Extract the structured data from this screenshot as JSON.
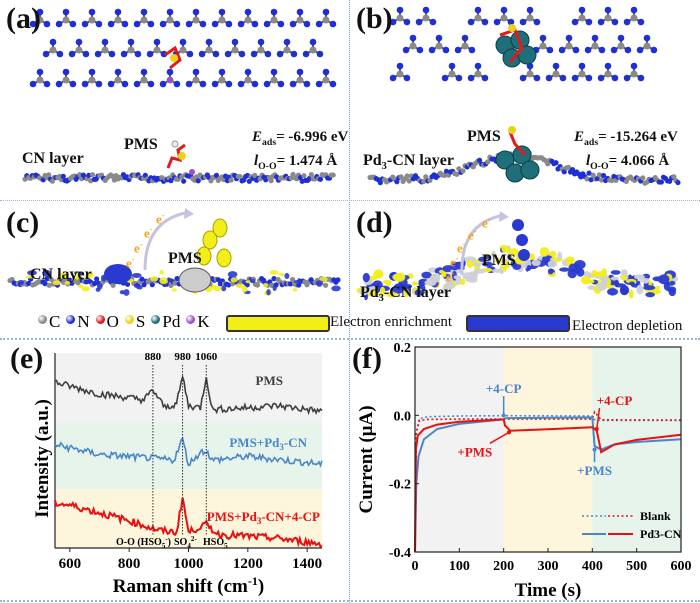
{
  "panels": {
    "a": {
      "label": "(a)",
      "layer_label": "CN layer",
      "molecule_label": "PMS",
      "eads_symbol": "E",
      "eads_sub": "ads",
      "eads_value": "= -6.996 eV",
      "l_symbol": "l",
      "l_sub": "O-O",
      "l_value": "= 1.474 Å"
    },
    "b": {
      "label": "(b)",
      "layer_label_main": "Pd",
      "layer_label_sub": "3",
      "layer_label_rest": "-CN layer",
      "molecule_label": "PMS",
      "eads_symbol": "E",
      "eads_sub": "ads",
      "eads_value": "= -15.264 eV",
      "l_symbol": "l",
      "l_sub": "O-O",
      "l_value": "=  4.066 Å"
    },
    "c": {
      "label": "(c)",
      "layer_label": "CN layer",
      "molecule_label": "PMS",
      "electron": "e",
      "electron_sup": "-"
    },
    "d": {
      "label": "(d)",
      "layer_label_main": "Pd",
      "layer_label_sub": "3",
      "layer_label_rest": "-CN layer",
      "molecule_label": "PMS",
      "electron": "e",
      "electron_sup": "-"
    }
  },
  "legend": {
    "atoms": [
      {
        "symbol": "C",
        "color": "#8a8a8a"
      },
      {
        "symbol": "N",
        "color": "#1f2fd6"
      },
      {
        "symbol": "O",
        "color": "#e01b1b"
      },
      {
        "symbol": "S",
        "color": "#e8d21a"
      },
      {
        "symbol": "Pd",
        "color": "#1f6f7a"
      },
      {
        "symbol": "K",
        "color": "#9a4fd0"
      }
    ],
    "enrichment": {
      "label": "Electron enrichment",
      "color": "#f2ee1a"
    },
    "depletion": {
      "label": "Electron depletion",
      "color": "#2a3ad0"
    }
  },
  "chart_data": [
    {
      "panel": "(e)",
      "type": "line",
      "xlabel": "Raman shift (cm",
      "xlabel_sup": "-1",
      "xlabel_end": ")",
      "ylabel": "Intensity (a.u.)",
      "xlim": [
        550,
        1450
      ],
      "xticks": [
        600,
        800,
        1000,
        1200,
        1400
      ],
      "y_ticks_shown": false,
      "grid": false,
      "peak_lines": [
        {
          "x": 880,
          "label": "880",
          "assignment": "O-O (HSO",
          "assignment_sub": "5",
          "assignment_sup": "-",
          "assignment_end": ")"
        },
        {
          "x": 980,
          "label": "980",
          "assignment": "SO",
          "assignment_sub": "4",
          "assignment_sup": "2-",
          "assignment_end": ""
        },
        {
          "x": 1060,
          "label": "1060",
          "assignment": "HSO",
          "assignment_sub": "5",
          "assignment_sup": "-",
          "assignment_end": ""
        }
      ],
      "bands": [
        {
          "color": "#f2f2f2"
        },
        {
          "color": "#e6f4ec"
        },
        {
          "color": "#fdf5dc"
        }
      ],
      "series": [
        {
          "name": "PMS",
          "color": "#404040",
          "x": [
            550,
            600,
            700,
            800,
            850,
            880,
            920,
            960,
            980,
            1000,
            1040,
            1060,
            1080,
            1200,
            1300,
            1450
          ],
          "y": [
            0.85,
            0.83,
            0.79,
            0.77,
            0.76,
            0.81,
            0.72,
            0.74,
            0.88,
            0.73,
            0.72,
            0.88,
            0.71,
            0.72,
            0.73,
            0.7
          ]
        },
        {
          "name": "PMS+Pd3-CN",
          "name_main": "PMS+Pd",
          "name_sub": "3",
          "name_rest": "-CN",
          "color": "#4a86c8",
          "x": [
            550,
            700,
            880,
            950,
            980,
            1000,
            1040,
            1060,
            1080,
            1200,
            1450
          ],
          "y": [
            0.53,
            0.48,
            0.46,
            0.45,
            0.56,
            0.43,
            0.49,
            0.5,
            0.45,
            0.47,
            0.43
          ]
        },
        {
          "name": "PMS+Pd3-CN+4-CP",
          "name_main": "PMS+Pd",
          "name_sub": "3",
          "name_rest": "-CN+4-CP",
          "color": "#e81010",
          "x": [
            550,
            600,
            700,
            800,
            900,
            960,
            980,
            1000,
            1040,
            1060,
            1100,
            1200,
            1300,
            1450
          ],
          "y": [
            0.23,
            0.22,
            0.18,
            0.14,
            0.09,
            0.08,
            0.26,
            0.08,
            0.11,
            0.12,
            0.07,
            0.06,
            0.05,
            0.02
          ]
        }
      ]
    },
    {
      "panel": "(f)",
      "type": "line",
      "xlabel": "Time (s)",
      "ylabel": "Current (μA)",
      "xlim": [
        0,
        600
      ],
      "ylim": [
        -0.4,
        0.2
      ],
      "xticks": [
        0,
        100,
        200,
        300,
        400,
        500,
        600
      ],
      "yticks": [
        "0.2",
        "0.0",
        "-0.2",
        "-0.4"
      ],
      "ytick_values": [
        0.2,
        0.0,
        -0.2,
        -0.4
      ],
      "grid": false,
      "legend_position": "bottom-right",
      "legend": [
        {
          "label": "Blank",
          "style": "dotted"
        },
        {
          "label": "Pd3-CN",
          "label_main": "Pd",
          "label_sub": "3",
          "label_rest": "-CN",
          "style": "solid"
        }
      ],
      "bands": [
        {
          "from": 0,
          "to": 200,
          "color": "#f2f2f2"
        },
        {
          "from": 200,
          "to": 400,
          "color": "#fdf5dc"
        },
        {
          "from": 400,
          "to": 600,
          "color": "#e6f4ec"
        }
      ],
      "series": [
        {
          "name": "Blank (blue)",
          "color": "#4a86c8",
          "style": "dotted",
          "x": [
            0,
            3,
            10,
            30,
            100,
            200,
            400,
            402,
            420,
            600
          ],
          "y": [
            -0.4,
            -0.05,
            -0.01,
            -0.004,
            -0.002,
            -0.001,
            -0.002,
            -0.012,
            -0.015,
            -0.015
          ]
        },
        {
          "name": "Blank (red)",
          "color": "#e81010",
          "style": "dotted",
          "x": [
            0,
            3,
            10,
            30,
            100,
            200,
            400,
            405,
            420,
            600
          ],
          "y": [
            -0.4,
            -0.05,
            -0.015,
            -0.012,
            -0.011,
            -0.011,
            -0.011,
            0.01,
            -0.013,
            -0.014
          ]
        },
        {
          "name": "Pd3-CN (blue)",
          "color": "#4a86c8",
          "style": "solid",
          "x": [
            0,
            3,
            8,
            20,
            50,
            100,
            200,
            205,
            300,
            400,
            405,
            420,
            450,
            500,
            600
          ],
          "y": [
            -0.4,
            -0.2,
            -0.12,
            -0.07,
            -0.04,
            -0.025,
            -0.012,
            -0.008,
            -0.007,
            -0.006,
            -0.09,
            -0.1,
            -0.085,
            -0.078,
            -0.07
          ]
        },
        {
          "name": "Pd3-CN (red)",
          "color": "#e81010",
          "style": "solid",
          "x": [
            0,
            2,
            6,
            20,
            50,
            100,
            200,
            203,
            215,
            300,
            400,
            410,
            420,
            450,
            500,
            600
          ],
          "y": [
            -0.4,
            -0.1,
            -0.06,
            -0.04,
            -0.027,
            -0.019,
            -0.012,
            -0.03,
            -0.045,
            -0.041,
            -0.035,
            -0.045,
            -0.108,
            -0.085,
            -0.072,
            -0.057
          ]
        }
      ],
      "annotations": [
        {
          "text": "+4-CP",
          "color": "#4a86c8",
          "x": 200,
          "y": 0.0
        },
        {
          "text": "+PMS",
          "color": "#e81010",
          "x": 212,
          "y": -0.05
        },
        {
          "text": "+PMS",
          "color": "#4a86c8",
          "x": 405,
          "y": -0.1
        },
        {
          "text": "+4-CP",
          "color": "#e81010",
          "x": 410,
          "y": -0.04
        }
      ]
    }
  ]
}
